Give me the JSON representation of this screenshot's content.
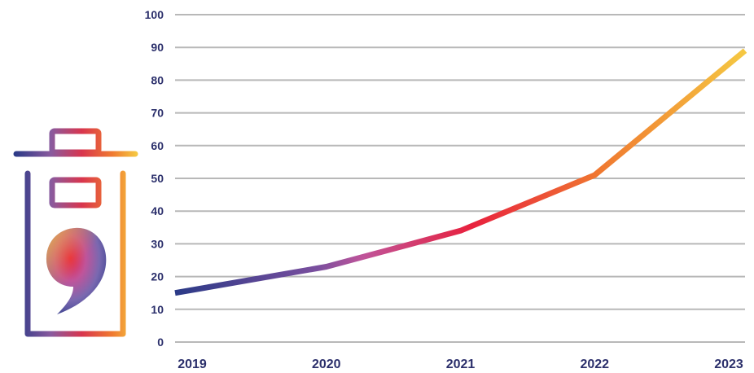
{
  "colors": {
    "gradient": [
      "#2b3a87",
      "#6a4b9c",
      "#c0549a",
      "#e8213e",
      "#f07a30",
      "#f5c842"
    ],
    "grid": "#b8b8b8",
    "tick_text": "#2b2f6b"
  },
  "icon": {
    "name": "trash-bin-with-comma-icon"
  },
  "chart_data": {
    "type": "line",
    "x": [
      "2019",
      "2020",
      "2021",
      "2022",
      "2023"
    ],
    "series": [
      {
        "values": [
          15,
          23,
          34,
          51,
          89
        ]
      }
    ],
    "ylim": [
      0,
      100
    ],
    "yticks": [
      "0",
      "10",
      "20",
      "30",
      "40",
      "50",
      "60",
      "70",
      "80",
      "90",
      "100"
    ],
    "xticks": [
      "2019",
      "2020",
      "2021",
      "2022",
      "2023"
    ],
    "grid": true,
    "title": "",
    "xlabel": "",
    "ylabel": ""
  }
}
